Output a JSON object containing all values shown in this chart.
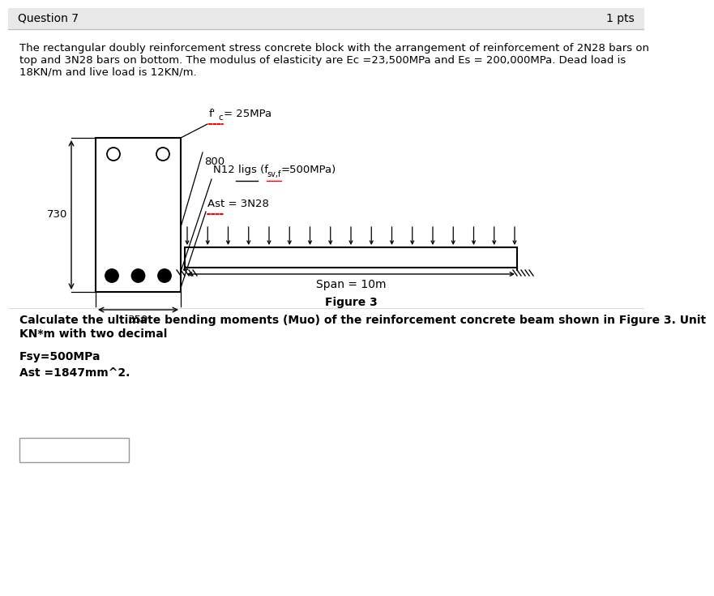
{
  "title": "Question 7",
  "pts": "1 pts",
  "background_color": "#ffffff",
  "header_bg": "#e8e8e8",
  "paragraph_line1": "The rectangular doubly reinforcement stress concrete block with the arrangement of reinforcement of 2N28 bars on",
  "paragraph_line2": "top and 3N28 bars on bottom. The modulus of elasticity are Ec =23,500MPa and Es = 200,000MPa. Dead load is",
  "paragraph_line3": "18KN/m and live load is 12KN/m.",
  "dim_730": "730",
  "dim_350": "350",
  "fc_text1": "f'",
  "fc_text2": "c",
  "fc_text3": "= 25MPa",
  "dim_800": "800",
  "n12_text": "N12 ligs (f",
  "n12_sub": "sv,f",
  "n12_text2": "=500MPa)",
  "ast_label": "Ast = 3N28",
  "span_label": "Span = 10m",
  "figure_label": "Figure 3",
  "question_line1": "Calculate the ultimate bending moments (Muo) of the reinforcement concrete beam shown in Figure 3. Unit",
  "question_line2": "KN*m with two decimal",
  "fsy_text": "Fsy=500MPa",
  "ast_text": "Ast =1847mm^2.",
  "font_size_title": 10,
  "font_size_body": 9.5,
  "font_size_bold": 10
}
